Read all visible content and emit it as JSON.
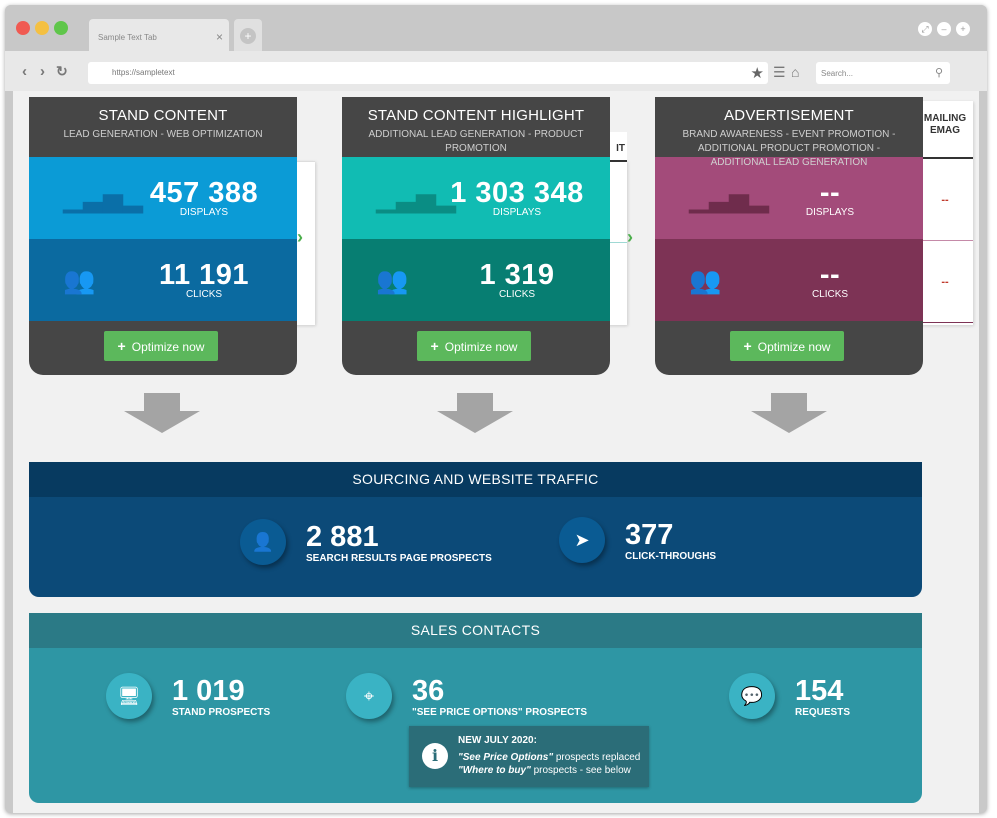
{
  "browser": {
    "tab_title": "Sample Text Tab",
    "tab_close": "×",
    "new_tab": "+",
    "url": "https://sampletext",
    "search_placeholder": "Search...",
    "icons": [
      "back-icon",
      "forward-icon",
      "reload-icon",
      "star-icon",
      "menu-icon",
      "home-icon",
      "search-icon"
    ]
  },
  "cards": [
    {
      "title": "STAND CONTENT",
      "subtitle": "LEAD GENERATION - WEB OPTIMIZATION",
      "displays_value": "457 388",
      "displays_label": "DISPLAYS",
      "clicks_value": "11 191",
      "clicks_label": "CLICKS",
      "button": "Optimize now",
      "colors": {
        "top": "#0b9bd6",
        "bottom": "#0b6aa0",
        "icon": "#0a6fa8",
        "icon2": "#0a9bd9"
      }
    },
    {
      "title": "STAND CONTENT HIGHLIGHT",
      "subtitle": "ADDITIONAL LEAD GENERATION - PRODUCT PROMOTION",
      "displays_value": "1 303 348",
      "displays_label": "DISPLAYS",
      "clicks_value": "1 319",
      "clicks_label": "CLICKS",
      "button": "Optimize now",
      "colors": {
        "top": "#11bcb3",
        "bottom": "#077e72",
        "icon": "#0a8d84",
        "icon2": "#0fc1b3"
      }
    },
    {
      "title": "ADVERTISEMENT",
      "subtitle": "BRAND AWARENESS - EVENT PROMOTION - ADDITIONAL PRODUCT PROMOTION - ADDITIONAL LEAD GENERATION",
      "displays_value": "--",
      "displays_label": "DISPLAYS",
      "clicks_value": "--",
      "clicks_label": "CLICKS",
      "button": "Optimize now",
      "colors": {
        "top": "#a34b7a",
        "bottom": "#7d3355",
        "icon": "#6f2c4c",
        "icon2": "#a34d7b"
      }
    }
  ],
  "side_panel": {
    "partial_header_2": "IT",
    "mailing_header_line1": "MAILING",
    "mailing_header_line2": "EMAG",
    "mailing_displays": "--",
    "mailing_clicks": "--"
  },
  "sourcing": {
    "title": "SOURCING AND WEBSITE TRAFFIC",
    "prospects_value": "2 881",
    "prospects_label": "SEARCH RESULTS PAGE PROSPECTS",
    "clicks_value": "377",
    "clicks_label": "CLICK-THROUGHS"
  },
  "sales": {
    "title": "SALES CONTACTS",
    "stand_value": "1 019",
    "stand_label": "STAND PROSPECTS",
    "price_value": "36",
    "price_label": "\"SEE PRICE OPTIONS\" PROSPECTS",
    "requests_value": "154",
    "requests_label": "REQUESTS",
    "note_title": "NEW JULY 2020:",
    "note_line1_em": "\"See Price Options\"",
    "note_line1_rest": " prospects replaced",
    "note_line2_em": "\"Where to buy\"",
    "note_line2_rest": " prospects - see below"
  }
}
